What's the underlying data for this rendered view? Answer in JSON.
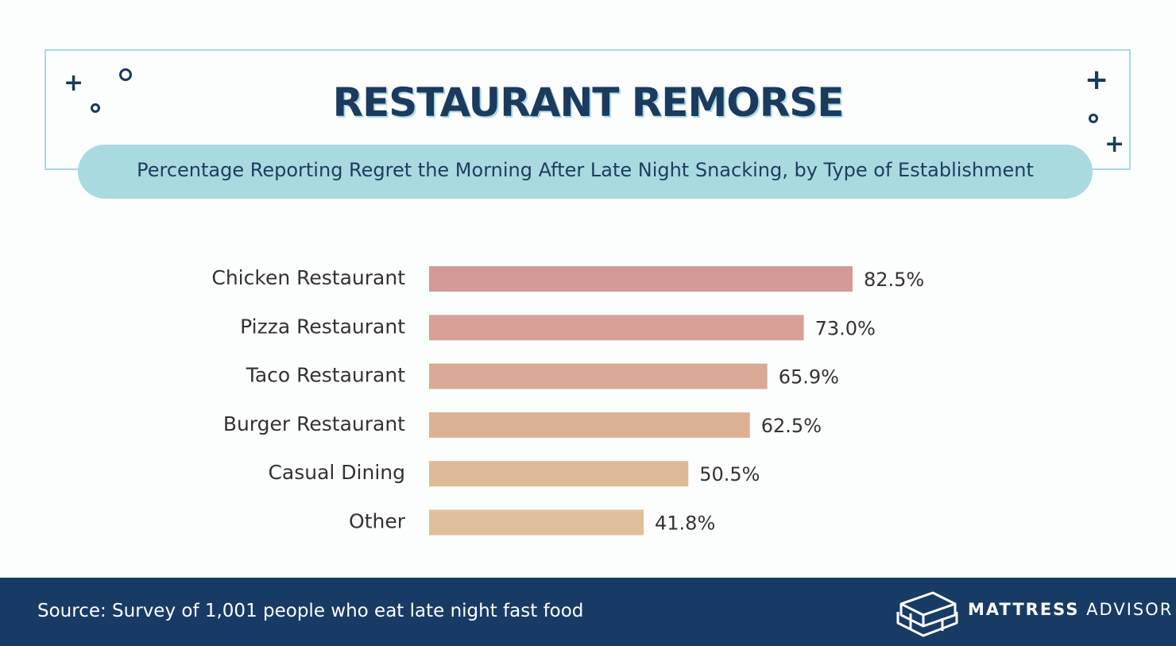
{
  "header": {
    "title": "RESTAURANT REMORSE",
    "subtitle": "Percentage Reporting Regret the Morning After Late Night Snacking, by Type of Establishment"
  },
  "chart_data": {
    "type": "bar",
    "orientation": "horizontal",
    "categories": [
      "Chicken Restaurant",
      "Pizza Restaurant",
      "Taco Restaurant",
      "Burger Restaurant",
      "Casual Dining",
      "Other"
    ],
    "values": [
      82.5,
      73.0,
      65.9,
      62.5,
      50.5,
      41.8
    ],
    "value_labels": [
      "82.5%",
      "73.0%",
      "65.9%",
      "62.5%",
      "50.5%",
      "41.8%"
    ],
    "bar_colors": [
      "#d39a97",
      "#d6a197",
      "#d9a996",
      "#dcb195",
      "#ddb996",
      "#dfc09a"
    ],
    "title": "RESTAURANT REMORSE",
    "xlabel": "",
    "ylabel": "",
    "xlim": [
      0,
      100
    ],
    "grid": false
  },
  "footer": {
    "source": "Source: Survey of 1,001 people who eat late night fast food",
    "brand_bold": "MATTRESS",
    "brand_rest": " ADVISOR"
  },
  "colors": {
    "navy": "#183b66",
    "accent": "#a8dadf",
    "text_dark": "#333333"
  },
  "icons": [
    "plus-icon",
    "circle-icon",
    "mattress-logo-icon"
  ]
}
